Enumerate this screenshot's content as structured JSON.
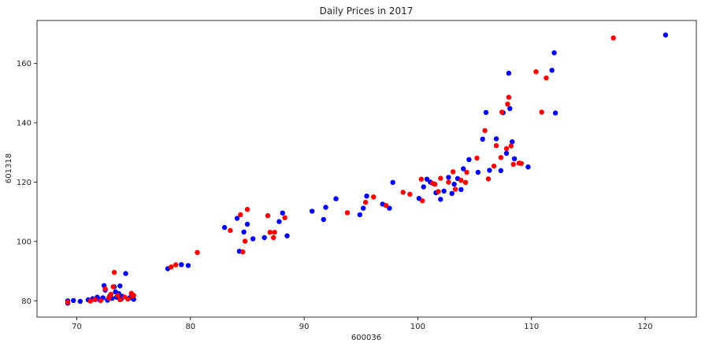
{
  "chart_data": {
    "type": "scatter",
    "title": "Daily Prices in 2017",
    "xlabel": "600036",
    "ylabel": "601318",
    "xlim": [
      66.5,
      124.5
    ],
    "ylim": [
      74.5,
      174.5
    ],
    "xticks": [
      70,
      80,
      90,
      100,
      110,
      120
    ],
    "yticks": [
      80,
      100,
      120,
      140,
      160
    ],
    "colors": {
      "blue": "#0000ff",
      "red": "#ff0000"
    },
    "series": [
      {
        "color": "#0000ff",
        "points": [
          [
            69.2,
            79.2
          ],
          [
            69.2,
            80.0
          ],
          [
            69.7,
            80.1
          ],
          [
            70.3,
            79.8
          ],
          [
            71.0,
            80.3
          ],
          [
            71.4,
            80.7
          ],
          [
            71.8,
            81.2
          ],
          [
            72.0,
            80.4
          ],
          [
            72.3,
            81.0
          ],
          [
            72.4,
            85.1
          ],
          [
            72.5,
            83.6
          ],
          [
            72.7,
            80.2
          ],
          [
            72.9,
            81.6
          ],
          [
            73.1,
            80.8
          ],
          [
            73.3,
            84.7
          ],
          [
            73.4,
            83.0
          ],
          [
            73.5,
            81.2
          ],
          [
            73.7,
            82.4
          ],
          [
            73.8,
            85.0
          ],
          [
            73.9,
            80.6
          ],
          [
            74.0,
            81.5
          ],
          [
            74.3,
            89.2
          ],
          [
            74.6,
            80.9
          ],
          [
            74.8,
            81.8
          ],
          [
            75.0,
            80.5
          ],
          [
            78.0,
            90.8
          ],
          [
            79.2,
            92.2
          ],
          [
            79.8,
            91.9
          ],
          [
            83.0,
            104.7
          ],
          [
            84.1,
            107.8
          ],
          [
            84.3,
            96.7
          ],
          [
            84.7,
            103.2
          ],
          [
            85.0,
            105.8
          ],
          [
            85.5,
            100.9
          ],
          [
            86.5,
            101.3
          ],
          [
            87.8,
            106.7
          ],
          [
            88.1,
            109.6
          ],
          [
            88.5,
            101.9
          ],
          [
            90.7,
            110.2
          ],
          [
            91.7,
            107.4
          ],
          [
            91.9,
            111.5
          ],
          [
            92.8,
            114.4
          ],
          [
            94.9,
            109.0
          ],
          [
            95.2,
            111.2
          ],
          [
            95.5,
            115.3
          ],
          [
            96.9,
            112.6
          ],
          [
            97.5,
            111.2
          ],
          [
            97.8,
            119.9
          ],
          [
            100.1,
            114.5
          ],
          [
            100.5,
            118.4
          ],
          [
            100.8,
            121.0
          ],
          [
            101.1,
            120.0
          ],
          [
            101.6,
            116.4
          ],
          [
            102.0,
            114.2
          ],
          [
            102.3,
            117.0
          ],
          [
            102.7,
            121.6
          ],
          [
            103.0,
            116.2
          ],
          [
            103.2,
            119.3
          ],
          [
            103.5,
            121.2
          ],
          [
            103.8,
            117.5
          ],
          [
            104.0,
            124.5
          ],
          [
            104.5,
            127.6
          ],
          [
            105.3,
            123.3
          ],
          [
            105.7,
            134.5
          ],
          [
            106.0,
            143.5
          ],
          [
            106.3,
            124.0
          ],
          [
            106.9,
            134.6
          ],
          [
            107.3,
            123.9
          ],
          [
            107.5,
            143.4
          ],
          [
            107.8,
            129.7
          ],
          [
            108.0,
            156.7
          ],
          [
            108.1,
            144.8
          ],
          [
            108.3,
            133.6
          ],
          [
            108.5,
            127.9
          ],
          [
            109.7,
            125.1
          ],
          [
            111.8,
            157.7
          ],
          [
            112.0,
            163.6
          ],
          [
            112.1,
            143.3
          ],
          [
            121.8,
            169.6
          ]
        ]
      },
      {
        "color": "#ff0000",
        "points": [
          [
            69.2,
            79.6
          ],
          [
            71.2,
            79.9
          ],
          [
            71.6,
            80.4
          ],
          [
            72.1,
            80.1
          ],
          [
            72.5,
            84.0
          ],
          [
            72.8,
            80.9
          ],
          [
            73.0,
            82.2
          ],
          [
            73.2,
            84.7
          ],
          [
            73.3,
            89.6
          ],
          [
            73.6,
            81.8
          ],
          [
            73.8,
            80.4
          ],
          [
            74.2,
            81.3
          ],
          [
            74.5,
            80.6
          ],
          [
            74.8,
            82.5
          ],
          [
            74.9,
            81.6
          ],
          [
            75.0,
            81.8
          ],
          [
            78.3,
            91.4
          ],
          [
            78.7,
            92.1
          ],
          [
            80.6,
            96.3
          ],
          [
            83.5,
            103.7
          ],
          [
            84.4,
            109.0
          ],
          [
            84.6,
            96.5
          ],
          [
            84.8,
            100.1
          ],
          [
            85.0,
            110.8
          ],
          [
            86.8,
            108.7
          ],
          [
            87.0,
            103.1
          ],
          [
            87.3,
            101.3
          ],
          [
            87.4,
            103.1
          ],
          [
            88.3,
            108.0
          ],
          [
            93.8,
            109.7
          ],
          [
            95.4,
            113.2
          ],
          [
            96.1,
            115.0
          ],
          [
            97.2,
            112.1
          ],
          [
            98.7,
            116.6
          ],
          [
            99.3,
            115.9
          ],
          [
            100.3,
            121.0
          ],
          [
            100.4,
            113.7
          ],
          [
            101.3,
            119.6
          ],
          [
            101.5,
            119.3
          ],
          [
            101.8,
            116.8
          ],
          [
            102.0,
            121.3
          ],
          [
            102.7,
            120.0
          ],
          [
            103.1,
            123.5
          ],
          [
            103.3,
            117.6
          ],
          [
            103.8,
            120.6
          ],
          [
            104.2,
            119.9
          ],
          [
            104.3,
            123.3
          ],
          [
            105.2,
            128.1
          ],
          [
            105.9,
            137.4
          ],
          [
            106.2,
            121.1
          ],
          [
            106.7,
            125.4
          ],
          [
            106.9,
            132.3
          ],
          [
            107.3,
            128.3
          ],
          [
            107.4,
            143.6
          ],
          [
            107.8,
            131.3
          ],
          [
            107.9,
            146.3
          ],
          [
            108.0,
            148.6
          ],
          [
            108.2,
            132.2
          ],
          [
            108.4,
            126.0
          ],
          [
            108.9,
            126.4
          ],
          [
            109.1,
            126.3
          ],
          [
            110.4,
            157.2
          ],
          [
            110.9,
            143.6
          ],
          [
            111.3,
            155.1
          ],
          [
            117.2,
            168.6
          ]
        ]
      }
    ]
  }
}
